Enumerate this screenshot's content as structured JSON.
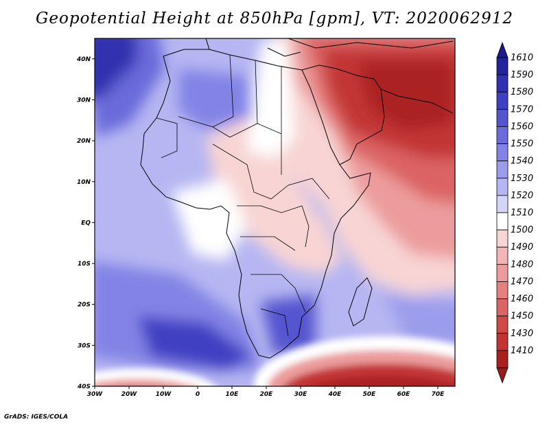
{
  "title": "Geopotential Height at 850hPa [gpm], VT: 2020062912",
  "footer": "GrADS: IGES/COLA",
  "map": {
    "lon_range": [
      -30,
      75
    ],
    "lat_range": [
      -40,
      45
    ],
    "lon_ticks": [
      {
        "value": -30,
        "label": "30W"
      },
      {
        "value": -20,
        "label": "20W"
      },
      {
        "value": -10,
        "label": "10W"
      },
      {
        "value": 0,
        "label": "0"
      },
      {
        "value": 10,
        "label": "10E"
      },
      {
        "value": 20,
        "label": "20E"
      },
      {
        "value": 30,
        "label": "30E"
      },
      {
        "value": 40,
        "label": "40E"
      },
      {
        "value": 50,
        "label": "50E"
      },
      {
        "value": 60,
        "label": "60E"
      },
      {
        "value": 70,
        "label": "70E"
      }
    ],
    "lat_ticks": [
      {
        "value": 40,
        "label": "40N"
      },
      {
        "value": 30,
        "label": "30N"
      },
      {
        "value": 20,
        "label": "20N"
      },
      {
        "value": 10,
        "label": "10N"
      },
      {
        "value": 0,
        "label": "EQ"
      },
      {
        "value": -10,
        "label": "10S"
      },
      {
        "value": -20,
        "label": "20S"
      },
      {
        "value": -30,
        "label": "30S"
      },
      {
        "value": -40,
        "label": "40S"
      }
    ]
  },
  "colorbar": {
    "levels": [
      {
        "label": "1610",
        "color": "#22229a"
      },
      {
        "label": "1590",
        "color": "#3030b0"
      },
      {
        "label": "1580",
        "color": "#4040c2"
      },
      {
        "label": "1570",
        "color": "#5555cf"
      },
      {
        "label": "1560",
        "color": "#6b6bdb"
      },
      {
        "label": "1550",
        "color": "#8383e6"
      },
      {
        "label": "1540",
        "color": "#9c9cec"
      },
      {
        "label": "1530",
        "color": "#b6b6f2"
      },
      {
        "label": "1520",
        "color": "#d4d4f8"
      },
      {
        "label": "1510",
        "color": "#ffffff"
      },
      {
        "label": "1500",
        "color": "#f8d4d4"
      },
      {
        "label": "1490",
        "color": "#f2b6b6"
      },
      {
        "label": "1480",
        "color": "#ec9c9c"
      },
      {
        "label": "1470",
        "color": "#e48080"
      },
      {
        "label": "1460",
        "color": "#db6464"
      },
      {
        "label": "1450",
        "color": "#d04848"
      },
      {
        "label": "1430",
        "color": "#c23434"
      },
      {
        "label": "1410",
        "color": "#aa2020"
      }
    ],
    "top_color": "#1a1a8a",
    "bottom_color": "#981a1a"
  }
}
